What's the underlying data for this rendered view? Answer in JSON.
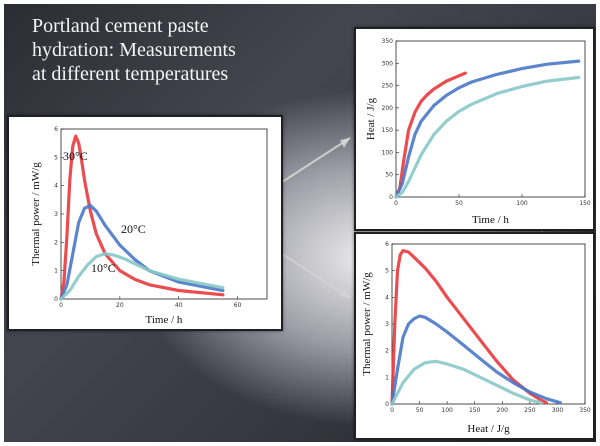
{
  "slide": {
    "title_lines": [
      "Portland cement paste",
      "hydration: Measurements",
      "at different temperatures"
    ],
    "background": "#3a3a44",
    "panel_border": "#202020"
  },
  "chart_data": [
    {
      "id": "power-vs-time",
      "type": "line",
      "title": "",
      "xlabel": "Time / h",
      "ylabel": "Thermal power / mW/g",
      "xlim": [
        0,
        70
      ],
      "ylim": [
        0,
        6
      ],
      "xticks": [
        0,
        20,
        40,
        60
      ],
      "yticks": [
        0,
        1,
        2,
        3,
        4,
        5,
        6
      ],
      "series": [
        {
          "name": "30°C",
          "color": "#e8393c",
          "x": [
            0,
            1,
            2,
            3,
            4,
            5,
            6,
            7,
            8,
            10,
            12,
            15,
            20,
            25,
            30,
            40,
            55
          ],
          "y": [
            0,
            0.6,
            2.2,
            4.2,
            5.4,
            5.75,
            5.5,
            4.9,
            4.2,
            3.1,
            2.3,
            1.6,
            1.0,
            0.7,
            0.5,
            0.3,
            0.15
          ]
        },
        {
          "name": "20°C",
          "color": "#4a78c8",
          "x": [
            0,
            2,
            4,
            6,
            8,
            10,
            12,
            15,
            20,
            25,
            30,
            40,
            55
          ],
          "y": [
            0,
            0.5,
            1.6,
            2.7,
            3.2,
            3.3,
            3.1,
            2.6,
            1.9,
            1.4,
            1.0,
            0.6,
            0.3
          ]
        },
        {
          "name": "10°C",
          "color": "#88c8c8",
          "x": [
            0,
            3,
            6,
            9,
            12,
            15,
            18,
            22,
            26,
            30,
            40,
            55
          ],
          "y": [
            0,
            0.3,
            0.8,
            1.2,
            1.5,
            1.6,
            1.55,
            1.4,
            1.2,
            1.0,
            0.7,
            0.4
          ]
        }
      ],
      "grid": false,
      "legend": "none"
    },
    {
      "id": "heat-vs-time",
      "type": "line",
      "title": "",
      "xlabel": "Time / h",
      "ylabel": "Heat / J/g",
      "xlim": [
        0,
        150
      ],
      "ylim": [
        0,
        350
      ],
      "xticks": [
        0,
        50,
        100,
        150
      ],
      "yticks": [
        0,
        50,
        100,
        150,
        200,
        250,
        300,
        350
      ],
      "series": [
        {
          "name": "",
          "color": "#e8393c",
          "x": [
            0,
            3,
            6,
            10,
            15,
            20,
            25,
            30,
            40,
            50,
            55
          ],
          "y": [
            0,
            20,
            80,
            150,
            190,
            215,
            230,
            242,
            260,
            272,
            278
          ]
        },
        {
          "name": "",
          "color": "#4a78c8",
          "x": [
            0,
            5,
            10,
            15,
            20,
            30,
            40,
            50,
            60,
            80,
            100,
            120,
            145
          ],
          "y": [
            0,
            30,
            90,
            140,
            170,
            205,
            228,
            245,
            258,
            275,
            288,
            298,
            305
          ]
        },
        {
          "name": "",
          "color": "#88c8c8",
          "x": [
            0,
            5,
            10,
            15,
            20,
            30,
            40,
            50,
            60,
            80,
            100,
            120,
            145
          ],
          "y": [
            0,
            10,
            35,
            65,
            95,
            140,
            170,
            192,
            208,
            232,
            248,
            260,
            268
          ]
        }
      ],
      "grid": false,
      "legend": "none"
    },
    {
      "id": "power-vs-heat",
      "type": "line",
      "title": "",
      "xlabel": "Heat / J/g",
      "ylabel": "Thermal power / mW/g",
      "xlim": [
        0,
        350
      ],
      "ylim": [
        0,
        6
      ],
      "xticks": [
        0,
        50,
        100,
        150,
        200,
        250,
        300,
        350
      ],
      "yticks": [
        0,
        1,
        2,
        3,
        4,
        5,
        6
      ],
      "series": [
        {
          "name": "",
          "color": "#e8393c",
          "x": [
            0,
            5,
            10,
            15,
            20,
            30,
            40,
            60,
            80,
            100,
            130,
            160,
            190,
            220,
            250,
            270,
            280
          ],
          "y": [
            0,
            3.0,
            5.0,
            5.6,
            5.75,
            5.7,
            5.5,
            5.1,
            4.6,
            4.0,
            3.2,
            2.4,
            1.6,
            0.9,
            0.4,
            0.15,
            0.05
          ]
        },
        {
          "name": "",
          "color": "#4a78c8",
          "x": [
            0,
            10,
            20,
            30,
            40,
            50,
            60,
            80,
            100,
            130,
            160,
            190,
            220,
            250,
            280,
            305
          ],
          "y": [
            0,
            1.3,
            2.5,
            3.0,
            3.2,
            3.3,
            3.25,
            3.0,
            2.7,
            2.2,
            1.7,
            1.2,
            0.8,
            0.45,
            0.2,
            0.05
          ]
        },
        {
          "name": "",
          "color": "#88c8c8",
          "x": [
            0,
            20,
            40,
            60,
            80,
            100,
            130,
            160,
            190,
            220,
            250,
            270
          ],
          "y": [
            0,
            0.8,
            1.3,
            1.55,
            1.6,
            1.5,
            1.3,
            1.0,
            0.7,
            0.4,
            0.15,
            0.05
          ]
        }
      ],
      "grid": false,
      "legend": "none"
    }
  ]
}
